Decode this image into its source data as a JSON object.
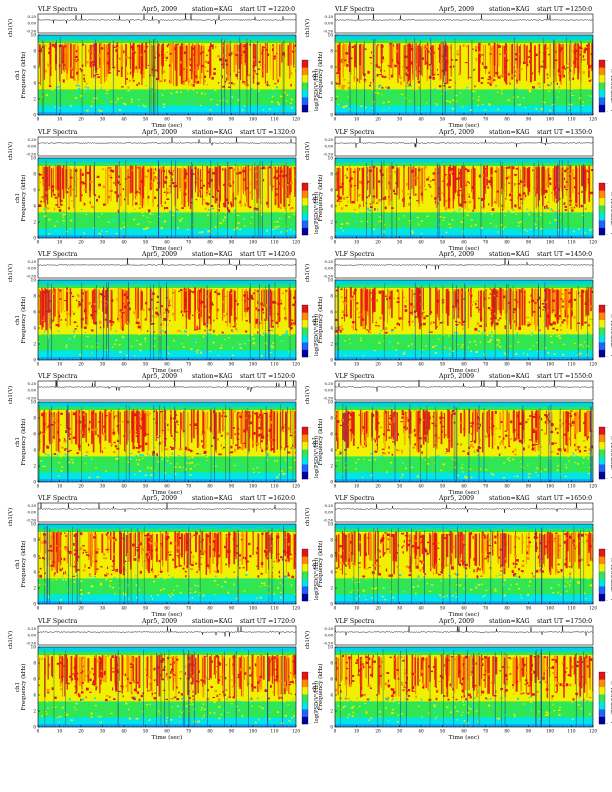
{
  "common": {
    "label": "VLF Spectra",
    "date": "Apr5, 2009",
    "station": "station=KAG",
    "start_prefix": "start  UT =",
    "ch_label": "ch1(V)",
    "freq_label_line1": "ch1",
    "freq_label_line2": "Frequency (kHz)",
    "colorbar_label": "log(PSD(V²/Hz))",
    "time_label": "Time (sec)"
  },
  "chart_data": [
    {
      "type": "heatmap",
      "start_ut": "1220:0",
      "x_ticks": [
        "0",
        "10",
        "20",
        "30",
        "40",
        "50",
        "60",
        "70",
        "80",
        "90",
        "100",
        "110",
        "120"
      ],
      "freq_ticks": [
        "0",
        "2",
        "4",
        "6",
        "8",
        "10"
      ],
      "ch_ticks": [
        "0.20",
        "0.00",
        "-0.50"
      ],
      "colorbar_ticks": [
        "-",
        "-"
      ],
      "xlim": [
        0,
        120
      ],
      "ylim": [
        0,
        10
      ]
    },
    {
      "type": "heatmap",
      "start_ut": "1250:0",
      "x_ticks": [
        "0",
        "10",
        "20",
        "30",
        "40",
        "50",
        "60",
        "70",
        "80",
        "90",
        "100",
        "110",
        "120"
      ],
      "freq_ticks": [
        "0",
        "2",
        "4",
        "6",
        "8",
        "10"
      ],
      "ch_ticks": [
        "0.20",
        "0.00",
        "-0.50"
      ],
      "colorbar_ticks": [
        "-",
        "-"
      ],
      "xlim": [
        0,
        120
      ],
      "ylim": [
        0,
        10
      ]
    },
    {
      "type": "heatmap",
      "start_ut": "1320:0",
      "x_ticks": [
        "0",
        "10",
        "20",
        "30",
        "40",
        "50",
        "60",
        "70",
        "80",
        "90",
        "100",
        "110",
        "120"
      ],
      "freq_ticks": [
        "0",
        "2",
        "4",
        "6",
        "8",
        "10"
      ],
      "ch_ticks": [
        "0.20",
        "0.00",
        "-0.50"
      ],
      "colorbar_ticks": [
        "-",
        "-"
      ],
      "xlim": [
        0,
        120
      ],
      "ylim": [
        0,
        10
      ]
    },
    {
      "type": "heatmap",
      "start_ut": "1350:0",
      "x_ticks": [
        "0",
        "10",
        "20",
        "30",
        "40",
        "50",
        "60",
        "70",
        "80",
        "90",
        "100",
        "110",
        "120"
      ],
      "freq_ticks": [
        "0",
        "2",
        "4",
        "6",
        "8",
        "10"
      ],
      "ch_ticks": [
        "0.20",
        "0.00",
        "-0.50"
      ],
      "colorbar_ticks": [
        "-",
        "-"
      ],
      "xlim": [
        0,
        120
      ],
      "ylim": [
        0,
        10
      ]
    },
    {
      "type": "heatmap",
      "start_ut": "1420:0",
      "x_ticks": [
        "0",
        "10",
        "20",
        "30",
        "40",
        "50",
        "60",
        "70",
        "80",
        "90",
        "100",
        "110",
        "120"
      ],
      "freq_ticks": [
        "0",
        "2",
        "4",
        "6",
        "8",
        "10"
      ],
      "ch_ticks": [
        "0.20",
        "0.00",
        "-0.50"
      ],
      "colorbar_ticks": [
        "-",
        "-"
      ],
      "xlim": [
        0,
        120
      ],
      "ylim": [
        0,
        10
      ]
    },
    {
      "type": "heatmap",
      "start_ut": "1450:0",
      "x_ticks": [
        "0",
        "10",
        "20",
        "30",
        "40",
        "50",
        "60",
        "70",
        "80",
        "90",
        "100",
        "110",
        "120"
      ],
      "freq_ticks": [
        "0",
        "2",
        "4",
        "6",
        "8",
        "10"
      ],
      "ch_ticks": [
        "0.20",
        "0.00",
        "-0.50"
      ],
      "colorbar_ticks": [
        "-",
        "-"
      ],
      "xlim": [
        0,
        120
      ],
      "ylim": [
        0,
        10
      ]
    },
    {
      "type": "heatmap",
      "start_ut": "1520:0",
      "x_ticks": [
        "0",
        "10",
        "20",
        "30",
        "40",
        "50",
        "60",
        "70",
        "80",
        "90",
        "100",
        "110",
        "120"
      ],
      "freq_ticks": [
        "0",
        "2",
        "4",
        "6",
        "8",
        "10"
      ],
      "ch_ticks": [
        "0.20",
        "0.00",
        "-0.50"
      ],
      "colorbar_ticks": [
        "-",
        "-"
      ],
      "xlim": [
        0,
        120
      ],
      "ylim": [
        0,
        10
      ]
    },
    {
      "type": "heatmap",
      "start_ut": "1550:0",
      "x_ticks": [
        "0",
        "10",
        "20",
        "30",
        "40",
        "50",
        "60",
        "70",
        "80",
        "90",
        "100",
        "110",
        "120"
      ],
      "freq_ticks": [
        "0",
        "2",
        "4",
        "6",
        "8",
        "10"
      ],
      "ch_ticks": [
        "0.20",
        "0.00",
        "-0.50"
      ],
      "colorbar_ticks": [
        "-",
        "-"
      ],
      "xlim": [
        0,
        120
      ],
      "ylim": [
        0,
        10
      ]
    },
    {
      "type": "heatmap",
      "start_ut": "1620:0",
      "x_ticks": [
        "0",
        "10",
        "20",
        "30",
        "40",
        "50",
        "60",
        "70",
        "80",
        "90",
        "100",
        "110",
        "120"
      ],
      "freq_ticks": [
        "0",
        "2",
        "4",
        "6",
        "8",
        "10"
      ],
      "ch_ticks": [
        "0.20",
        "0.00",
        "-0.50"
      ],
      "colorbar_ticks": [
        "-",
        "-"
      ],
      "xlim": [
        0,
        120
      ],
      "ylim": [
        0,
        10
      ]
    },
    {
      "type": "heatmap",
      "start_ut": "1650:0",
      "x_ticks": [
        "0",
        "10",
        "20",
        "30",
        "40",
        "50",
        "60",
        "70",
        "80",
        "90",
        "100",
        "110",
        "120"
      ],
      "freq_ticks": [
        "0",
        "2",
        "4",
        "6",
        "8",
        "10"
      ],
      "ch_ticks": [
        "0.20",
        "0.00",
        "-0.50"
      ],
      "colorbar_ticks": [
        "-",
        "-"
      ],
      "xlim": [
        0,
        120
      ],
      "ylim": [
        0,
        10
      ]
    },
    {
      "type": "heatmap",
      "start_ut": "1720:0",
      "x_ticks": [
        "0",
        "10",
        "20",
        "30",
        "40",
        "50",
        "60",
        "70",
        "80",
        "90",
        "100",
        "110",
        "120"
      ],
      "freq_ticks": [
        "0",
        "2",
        "4",
        "6",
        "8",
        "10"
      ],
      "ch_ticks": [
        "0.20",
        "0.00",
        "-0.50"
      ],
      "colorbar_ticks": [
        "-",
        "-"
      ],
      "xlim": [
        0,
        120
      ],
      "ylim": [
        0,
        10
      ]
    },
    {
      "type": "heatmap",
      "start_ut": "1750:0",
      "x_ticks": [
        "0",
        "10",
        "20",
        "30",
        "40",
        "50",
        "60",
        "70",
        "80",
        "90",
        "100",
        "110",
        "120"
      ],
      "freq_ticks": [
        "0",
        "2",
        "4",
        "6",
        "8",
        "10"
      ],
      "ch_ticks": [
        "0.20",
        "0.00",
        "-0.50"
      ],
      "colorbar_ticks": [
        "-",
        "-"
      ],
      "xlim": [
        0,
        120
      ],
      "ylim": [
        0,
        10
      ]
    }
  ],
  "colors": {
    "background_band": "#00d2e6",
    "dark_blue": "#0000a0",
    "blue": "#1e64ff",
    "cyan": "#00e6e6",
    "green": "#32e650",
    "yellow": "#f0f000",
    "orange": "#ff8c00",
    "red": "#e61414",
    "trace": "#000000"
  }
}
